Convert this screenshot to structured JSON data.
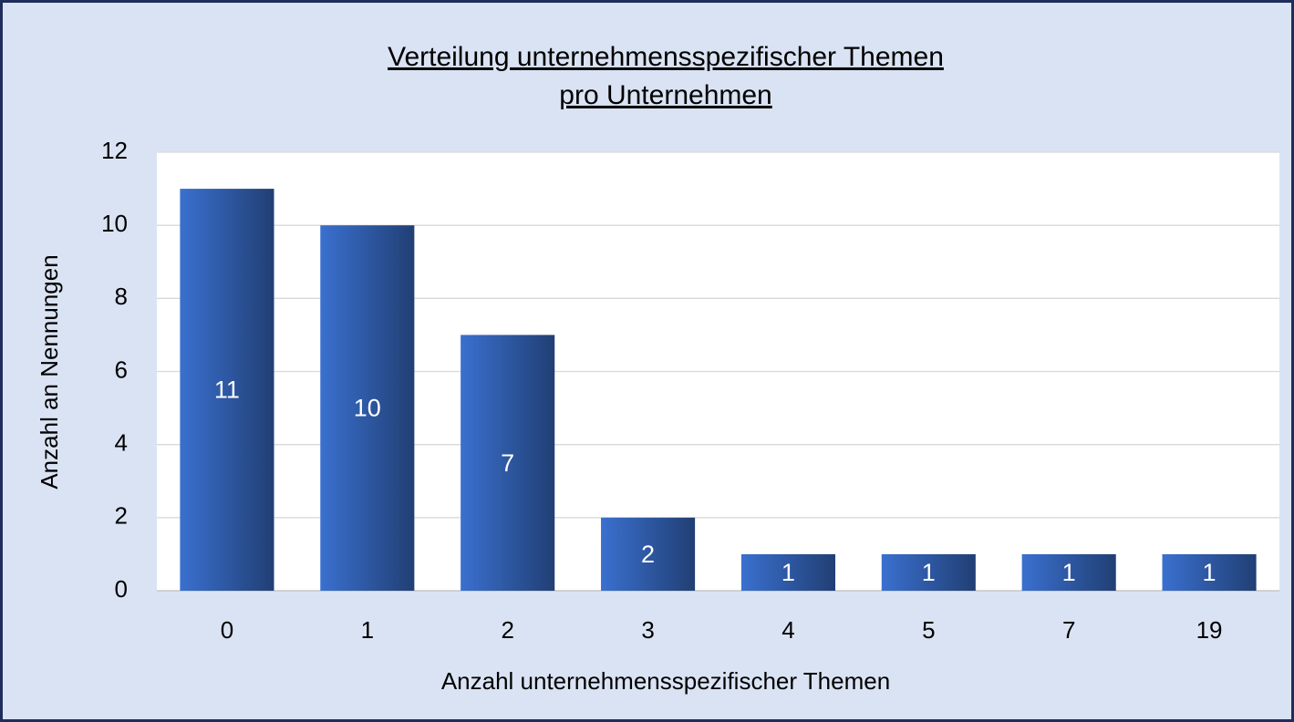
{
  "chart_data": {
    "type": "bar",
    "title": [
      "Verteilung unternehmensspezifischer Themen",
      "pro Unternehmen"
    ],
    "x_label": "Anzahl unternehmensspezifischer Themen",
    "y_label": "Anzahl an Nennungen",
    "categories": [
      "0",
      "1",
      "2",
      "3",
      "4",
      "5",
      "7",
      "19"
    ],
    "values": [
      11,
      10,
      7,
      2,
      1,
      1,
      1,
      1
    ],
    "color": "#3a70cf",
    "ylim": [
      0,
      12
    ],
    "yticks": [
      0,
      2,
      4,
      6,
      8,
      10,
      12
    ],
    "grid": true
  }
}
